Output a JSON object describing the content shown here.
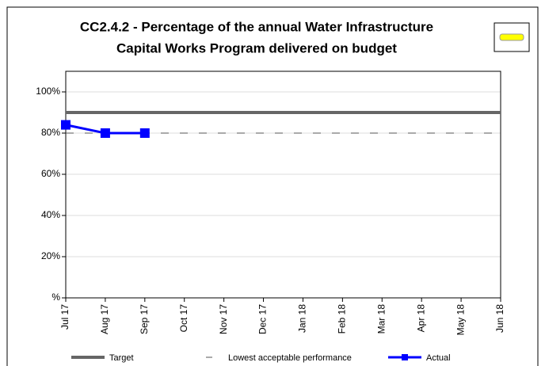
{
  "chart_data": {
    "type": "line",
    "title_lines": [
      "CC2.4.2 - Percentage of the annual Water Infrastructure",
      "Capital Works Program delivered on budget"
    ],
    "categories": [
      "Jul 17",
      "Aug 17",
      "Sep 17",
      "Oct 17",
      "Nov 17",
      "Dec 17",
      "Jan 18",
      "Feb 18",
      "Mar 18",
      "Apr 18",
      "May 18",
      "Jun 18"
    ],
    "series": [
      {
        "name": "Target",
        "color": "#666666",
        "style": "solid",
        "values": [
          90,
          90,
          90,
          90,
          90,
          90,
          90,
          90,
          90,
          90,
          90,
          90
        ]
      },
      {
        "name": "Lowest acceptable performance",
        "color": "#555555",
        "style": "dashed",
        "values": [
          80,
          80,
          80,
          80,
          80,
          80,
          80,
          80,
          80,
          80,
          80,
          80
        ]
      },
      {
        "name": "Actual",
        "color": "#0000ff",
        "style": "marker",
        "values": [
          84,
          80,
          80,
          null,
          null,
          null,
          null,
          null,
          null,
          null,
          null,
          null
        ]
      }
    ],
    "ylim": [
      0,
      110
    ],
    "yticks": [
      {
        "value": 0,
        "label": "%"
      },
      {
        "value": 20,
        "label": "20%"
      },
      {
        "value": 40,
        "label": "40%"
      },
      {
        "value": 60,
        "label": "60%"
      },
      {
        "value": 80,
        "label": "80%"
      },
      {
        "value": 100,
        "label": "100%"
      }
    ],
    "grid": true
  }
}
